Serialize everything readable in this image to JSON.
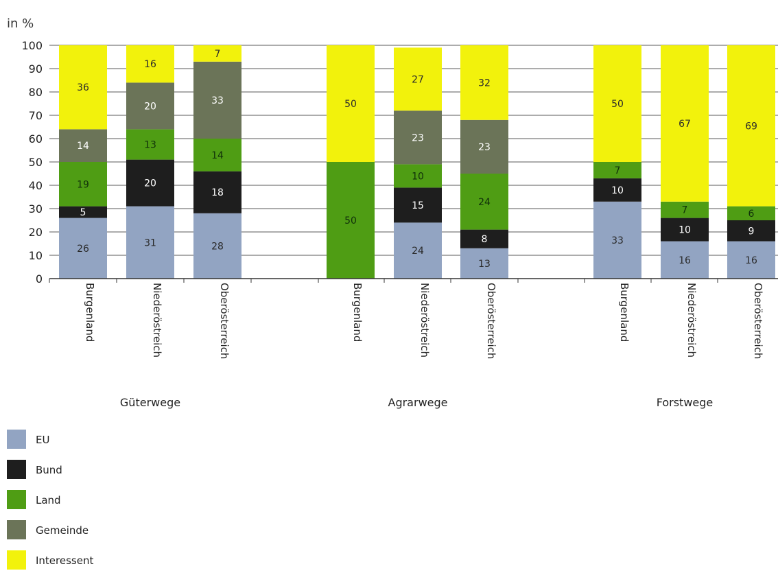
{
  "chart_data": {
    "type": "bar",
    "stacked": true,
    "ylabel": "in %",
    "ylim": [
      0,
      100
    ],
    "yticks": [
      0,
      10,
      20,
      30,
      40,
      50,
      60,
      70,
      80,
      90,
      100
    ],
    "grid": true,
    "groups": [
      {
        "name": "Güterwege",
        "categories": [
          "Burgenland",
          "Niederöstreich",
          "Oberösterreich"
        ]
      },
      {
        "name": "Agrarwege",
        "categories": [
          "Burgenland",
          "Niederöstreich",
          "Oberösterreich"
        ]
      },
      {
        "name": "Forstwege",
        "categories": [
          "Burgenland",
          "Niederöstreich",
          "Oberösterreich"
        ]
      }
    ],
    "series": [
      {
        "name": "EU",
        "color": "#92a4c2",
        "values": [
          26,
          31,
          28,
          0,
          24,
          13,
          33,
          16,
          16
        ]
      },
      {
        "name": "Bund",
        "color": "#1e1e1e",
        "values": [
          5,
          20,
          18,
          0,
          15,
          8,
          10,
          10,
          9
        ]
      },
      {
        "name": "Land",
        "color": "#4f9d14",
        "values": [
          19,
          13,
          14,
          50,
          10,
          24,
          7,
          7,
          6
        ]
      },
      {
        "name": "Gemeinde",
        "color": "#6b7458",
        "values": [
          14,
          20,
          33,
          0,
          23,
          23,
          0,
          0,
          0
        ]
      },
      {
        "name": "Interessent",
        "color": "#f2f20c",
        "values": [
          36,
          16,
          7,
          50,
          27,
          32,
          50,
          67,
          69
        ]
      }
    ],
    "legend_position": "bottom-left"
  }
}
